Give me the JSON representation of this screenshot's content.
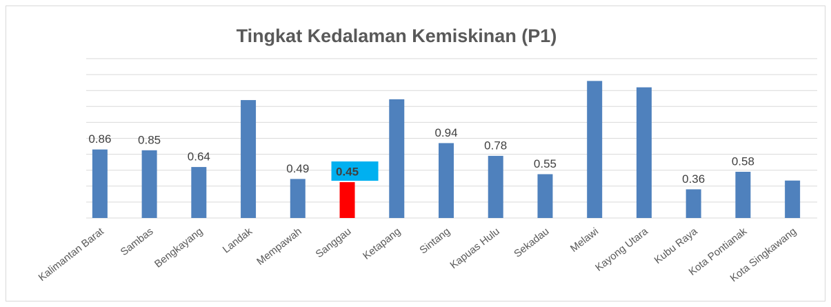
{
  "chart_data": {
    "type": "bar",
    "title": "Tingkat Kedalaman Kemiskinan (P1)",
    "categories": [
      "Kalimantan Barat",
      "Sambas",
      "Bengkayang",
      "Landak",
      "Mempawah",
      "Sanggau",
      "Ketapang",
      "Sintang",
      "Kapuas Hulu",
      "Sekadau",
      "Melawi",
      "Kayong Utara",
      "Kubu Raya",
      "Kota Pontianak",
      "Kota Singkawang"
    ],
    "values": [
      0.86,
      0.85,
      0.64,
      1.48,
      0.49,
      0.45,
      1.49,
      0.94,
      0.78,
      0.55,
      1.72,
      1.64,
      0.36,
      0.58,
      0.47
    ],
    "value_labels": [
      "0.86",
      "0.85",
      "0.64",
      null,
      "0.49",
      "0.45",
      null,
      "0.94",
      "0.78",
      "0.55",
      null,
      null,
      "0.36",
      "0.58",
      null
    ],
    "colors": [
      "#4f81bd",
      "#4f81bd",
      "#4f81bd",
      "#4f81bd",
      "#4f81bd",
      "#ff0000",
      "#4f81bd",
      "#4f81bd",
      "#4f81bd",
      "#4f81bd",
      "#4f81bd",
      "#4f81bd",
      "#4f81bd",
      "#4f81bd",
      "#4f81bd"
    ],
    "label_backgrounds": [
      null,
      null,
      null,
      null,
      null,
      "#00b0f0",
      null,
      null,
      null,
      null,
      null,
      null,
      null,
      null,
      null
    ],
    "ylim": [
      0,
      2
    ],
    "yticks": [
      0,
      0.2,
      0.4,
      0.6,
      0.8,
      1,
      1.2,
      1.4,
      1.6,
      1.8,
      2
    ],
    "grid": true
  }
}
